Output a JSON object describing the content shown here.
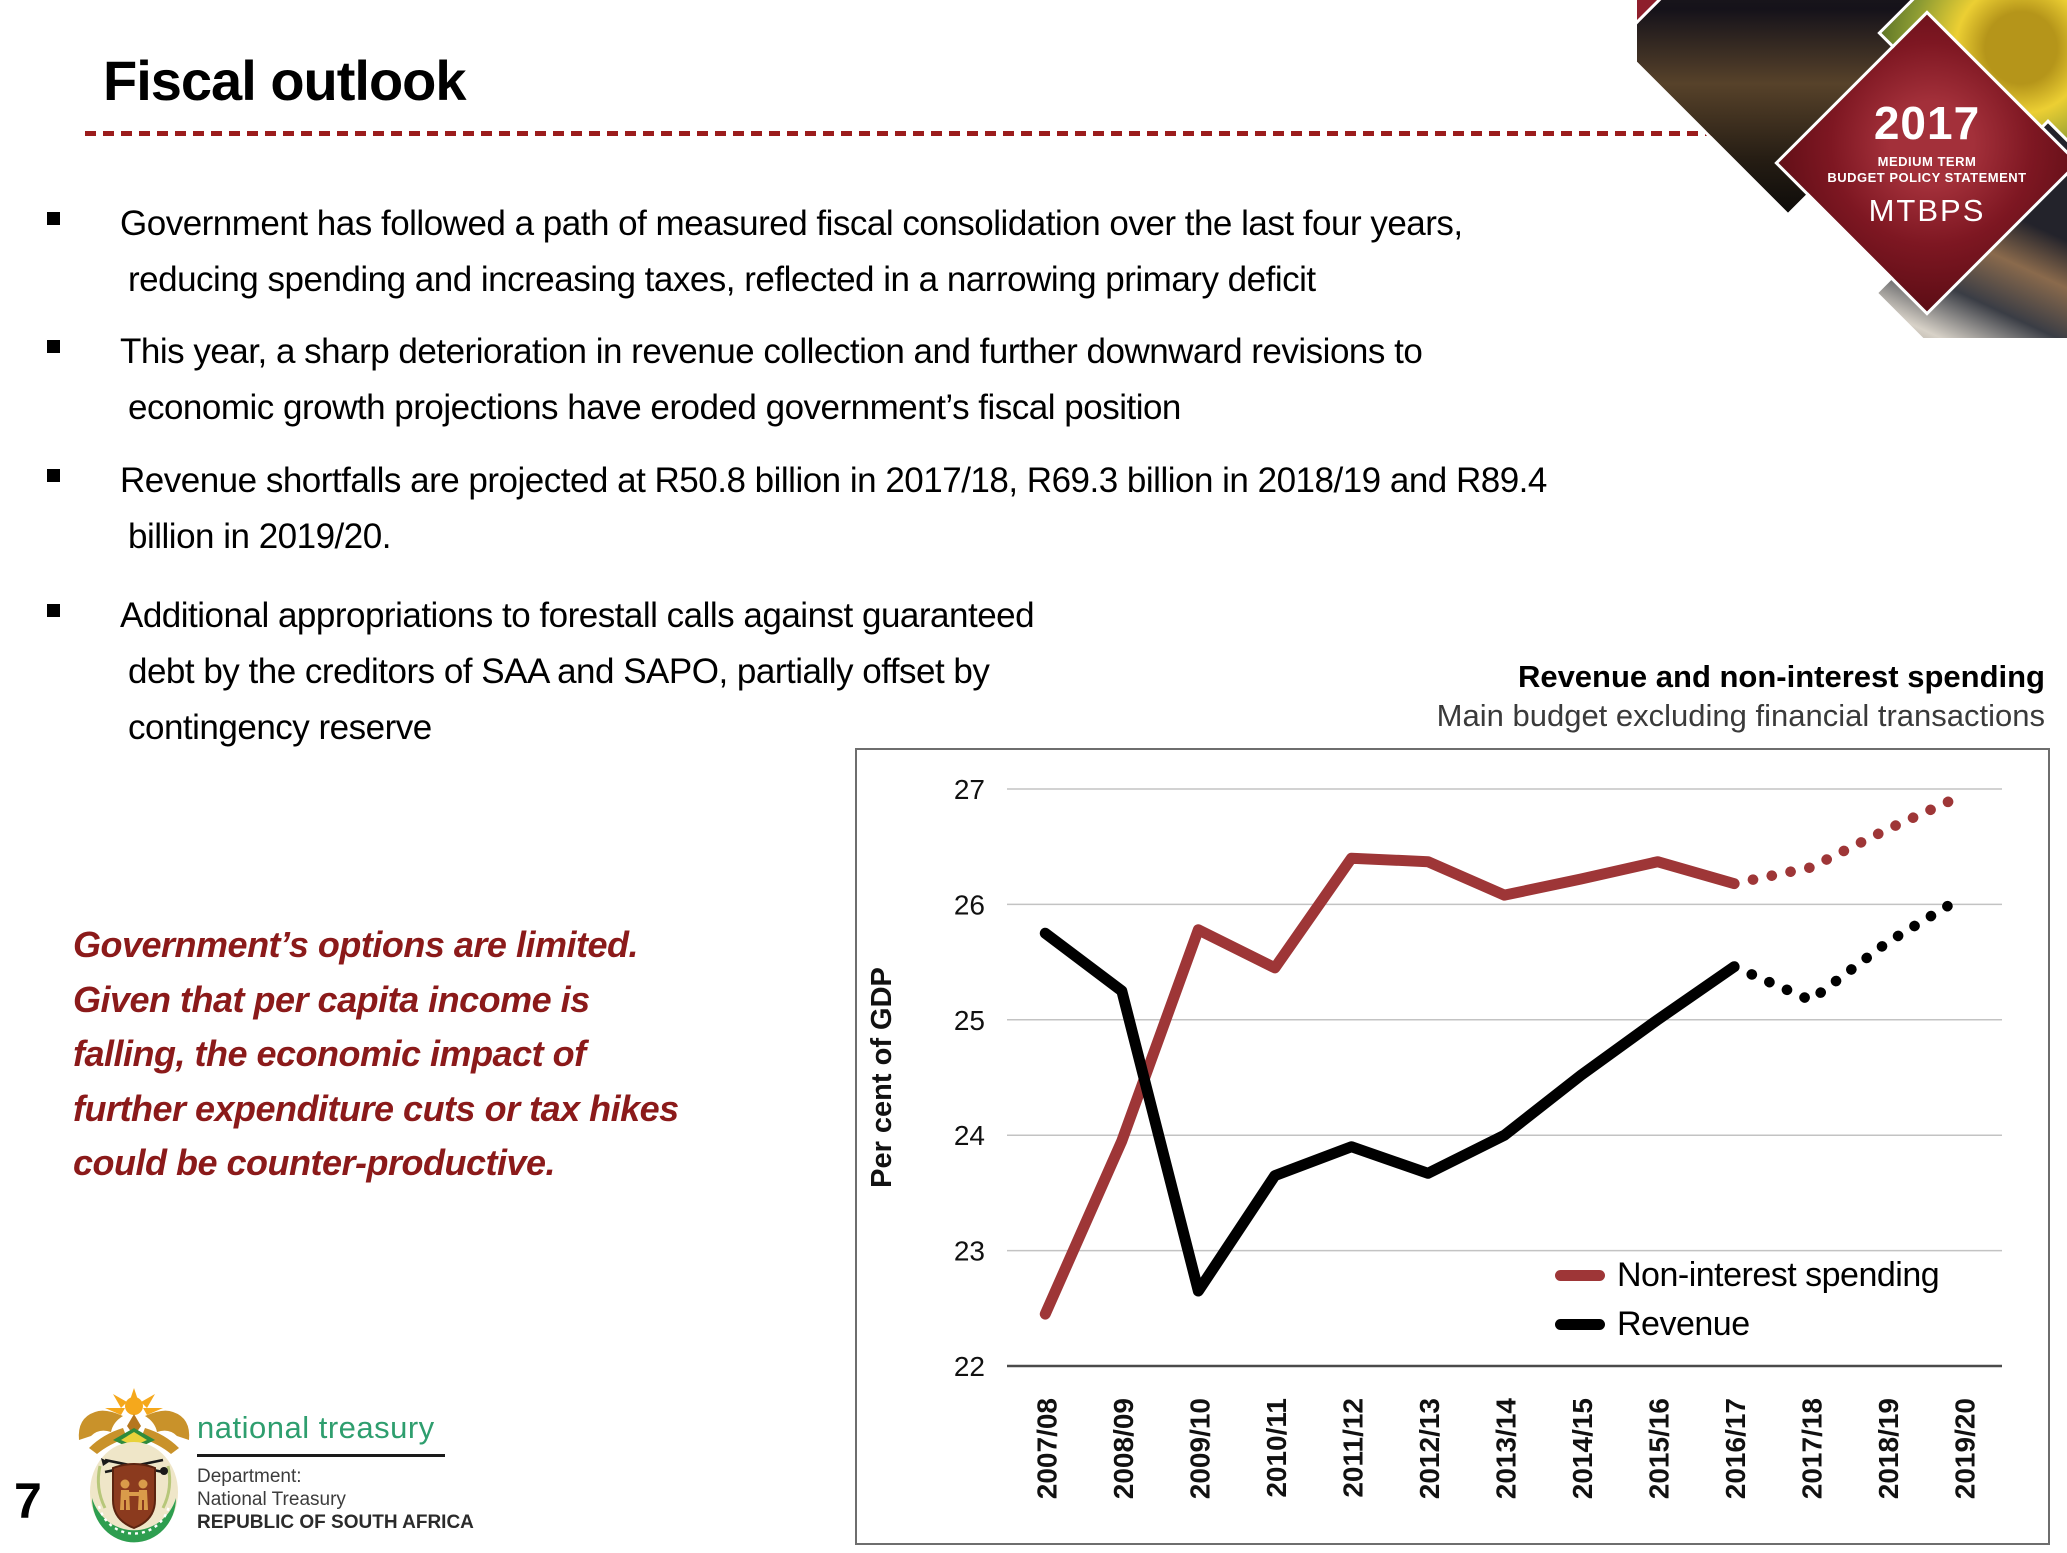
{
  "slide": {
    "title": "Fiscal outlook",
    "page_number": "7",
    "bullets": [
      {
        "lines": [
          "Government has followed a path of measured fiscal consolidation over the last four years,",
          "reducing spending and increasing taxes, reflected in a narrowing primary deficit"
        ]
      },
      {
        "lines": [
          "This year, a sharp deterioration in revenue collection and further downward revisions to",
          "economic growth projections have eroded government’s fiscal position"
        ]
      },
      {
        "lines": [
          "Revenue shortfalls are projected at R50.8 billion in 2017/18, R69.3 billion in 2018/19 and R89.4",
          "billion in 2019/20."
        ]
      },
      {
        "lines": [
          "Additional appropriations to forestall calls against guaranteed",
          "debt by the creditors of SAA and SAPO, partially offset by",
          "contingency reserve"
        ]
      }
    ],
    "callout": {
      "color": "#8B1A1A",
      "lines": [
        "Government’s options are limited.",
        "Given that per capita income is",
        "falling, the economic impact of",
        "further expenditure cuts or tax hikes",
        "could be counter-productive."
      ]
    },
    "title_underline_color": "#9B1C1C"
  },
  "brand_badge": {
    "year": "2017",
    "line1": "MEDIUM TERM",
    "line2": "BUDGET POLICY STATEMENT",
    "acronym": "MTBPS",
    "badge_color": "#7e1722"
  },
  "footer_logo": {
    "org": "national treasury",
    "dept_label": "Department:",
    "dept_name": "National Treasury",
    "country": "REPUBLIC OF SOUTH AFRICA",
    "org_color": "#2E9E6E"
  },
  "chart_data": {
    "type": "line",
    "title": "Revenue and non-interest spending",
    "subtitle": "Main budget excluding financial transactions",
    "ylabel": "Per cent of GDP",
    "ylim": [
      22,
      27
    ],
    "yticks": [
      22,
      23,
      24,
      25,
      26,
      27
    ],
    "grid": "horizontal",
    "legend_position": "inside lower right",
    "categories": [
      "2007/08",
      "2008/09",
      "2009/10",
      "2010/11",
      "2011/12",
      "2012/13",
      "2013/14",
      "2014/15",
      "2015/16",
      "2016/17",
      "2017/18",
      "2018/19",
      "2019/20"
    ],
    "series": [
      {
        "name": "Non-interest spending",
        "color": "#9E3637",
        "values": [
          22.45,
          23.95,
          25.78,
          25.45,
          26.4,
          26.37,
          26.08,
          26.22,
          26.37,
          26.18,
          26.32,
          26.65,
          26.95
        ],
        "solid_through_index": 9,
        "dotted_note": "values after 2016/17 are projections drawn as round dots"
      },
      {
        "name": "Revenue",
        "color": "#000000",
        "values": [
          25.75,
          25.25,
          22.65,
          23.65,
          23.9,
          23.67,
          24.0,
          24.52,
          25.0,
          25.46,
          25.17,
          25.67,
          26.07
        ],
        "solid_through_index": 9,
        "dotted_note": "values after 2016/17 are projections drawn as round dots"
      }
    ]
  }
}
